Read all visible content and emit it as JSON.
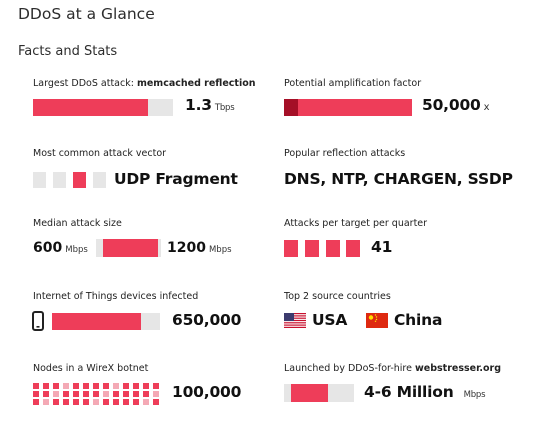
{
  "header": {
    "title": "DDoS at a Glance",
    "section": "Facts and Stats"
  },
  "colors": {
    "accent": "#ee3d59",
    "accent_dark": "#a50f27",
    "track": "#e6e6e6"
  },
  "stats": {
    "largest": {
      "label": "Largest DDoS attack: ",
      "label_bold": "memcached reflection",
      "value": "1.3",
      "unit": "Tbps",
      "bar_fraction": 0.82
    },
    "amplification": {
      "label": "Potential amplification factor",
      "value": "50,000",
      "unit": "x",
      "bar_fraction": 1.0
    },
    "vector": {
      "label": "Most common attack vector",
      "value": "UDP Fragment",
      "squares_total": 4,
      "squares_highlighted": 1
    },
    "reflection": {
      "label": "Popular reflection attacks",
      "value": "DNS, NTP, CHARGEN, SSDP"
    },
    "median": {
      "label": "Median attack size",
      "value_left": "600",
      "unit_left": "Mbps",
      "value_right": "1200",
      "unit_right": "Mbps",
      "bar_fraction": 0.85
    },
    "per_target": {
      "label": "Attacks per target per quarter",
      "value": "41",
      "squares": 4
    },
    "iot": {
      "label": "Internet of Things devices infected",
      "icon": "phone-icon",
      "value": "650,000",
      "bar_fraction": 0.82
    },
    "countries": {
      "label": "Top 2 source countries",
      "country1": "USA",
      "country2": "China"
    },
    "wirex": {
      "label": "Nodes in a WireX botnet",
      "value": "100,000",
      "dot_columns": 13,
      "dot_rows": 3
    },
    "webstresser": {
      "label": "Launched by DDoS-for-hire ",
      "label_bold": "webstresser.org",
      "value": "4-6 Million",
      "unit": "Mbps",
      "bar_fraction": 0.5
    }
  }
}
